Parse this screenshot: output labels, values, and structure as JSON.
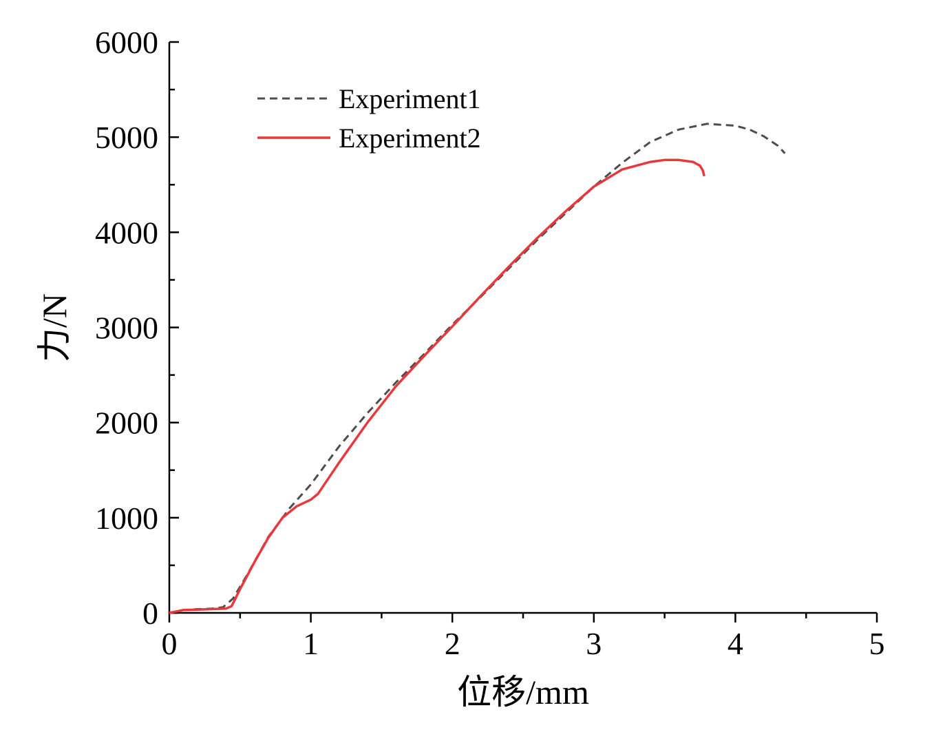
{
  "chart_data": {
    "type": "line",
    "xlabel": "位移/mm",
    "ylabel": "力/N",
    "xlim": [
      0,
      5
    ],
    "ylim": [
      0,
      6000
    ],
    "xticks": [
      "0",
      "1",
      "2",
      "3",
      "4",
      "5"
    ],
    "yticks": [
      "0",
      "1000",
      "2000",
      "3000",
      "4000",
      "5000",
      "6000"
    ],
    "grid": false,
    "legend_position": "top-left",
    "series": [
      {
        "name": "Experiment1",
        "color": "#4d4d4d",
        "style": "dashed",
        "x": [
          0,
          0.1,
          0.2,
          0.3,
          0.38,
          0.45,
          0.55,
          0.7,
          0.85,
          1.0,
          1.2,
          1.4,
          1.6,
          1.8,
          2.0,
          2.2,
          2.4,
          2.6,
          2.8,
          3.0,
          3.2,
          3.4,
          3.6,
          3.8,
          4.0,
          4.1,
          4.2,
          4.3,
          4.35
        ],
        "y": [
          0,
          30,
          40,
          45,
          60,
          150,
          400,
          800,
          1100,
          1350,
          1750,
          2100,
          2420,
          2720,
          3030,
          3320,
          3620,
          3920,
          4200,
          4480,
          4730,
          4950,
          5080,
          5140,
          5120,
          5080,
          5010,
          4910,
          4830
        ]
      },
      {
        "name": "Experiment2",
        "color": "#e8383b",
        "style": "solid",
        "x": [
          0,
          0.1,
          0.2,
          0.3,
          0.4,
          0.44,
          0.5,
          0.6,
          0.7,
          0.8,
          0.9,
          1.0,
          1.05,
          1.2,
          1.4,
          1.6,
          1.8,
          2.0,
          2.2,
          2.4,
          2.6,
          2.8,
          3.0,
          3.2,
          3.4,
          3.5,
          3.6,
          3.7,
          3.75,
          3.77,
          3.78
        ],
        "y": [
          0,
          30,
          35,
          40,
          45,
          70,
          250,
          530,
          790,
          1000,
          1120,
          1190,
          1250,
          1580,
          2000,
          2380,
          2700,
          3010,
          3330,
          3640,
          3940,
          4220,
          4480,
          4660,
          4740,
          4760,
          4760,
          4740,
          4700,
          4650,
          4590
        ]
      }
    ]
  }
}
